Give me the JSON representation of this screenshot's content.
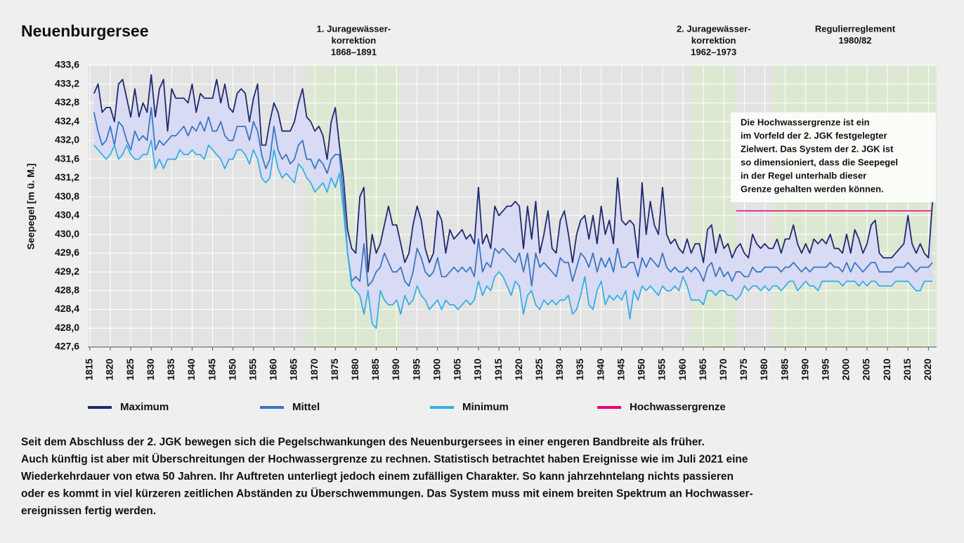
{
  "chart_data": {
    "type": "line",
    "title": "Neuenburgersee",
    "y_label": "Seepegel [m ü. M.]",
    "periods": [
      {
        "label": [
          "1. Juragewässer-",
          "korrektion",
          "1868–1891"
        ],
        "start": 1868,
        "end": 1891
      },
      {
        "label": [
          "2. Juragewässer-",
          "korrektion",
          "1962–1973"
        ],
        "start": 1962,
        "end": 1973
      },
      {
        "label": [
          "Regulierreglement",
          "1980/82"
        ],
        "start": 1982,
        "end": 2022
      }
    ],
    "note": [
      "Die Hochwassergrenze ist ein",
      "im Vorfeld der 2. JGK festgelegter",
      "Zielwert. Das System der 2. JGK ist",
      "so dimensioniert, dass die Seepegel",
      "in der Regel unterhalb dieser",
      "Grenze gehalten werden können."
    ],
    "caption": [
      "Seit dem Abschluss der 2. JGK bewegen sich die Pegelschwankungen des Neuenburgersees in einer engeren Bandbreite als früher.",
      "Auch künftig ist aber mit Überschreitungen der Hochwassergrenze zu rechnen. Statistisch betrachtet haben Ereignisse wie im Juli 2021 eine",
      "Wiederkehrdauer von etwa 50 Jahren. Ihr Auftreten unterliegt jedoch einem zufälligen Charakter. So kann jahrzehntelang nichts passieren",
      "oder es kommt in viel kürzeren zeitlichen Abständen zu Überschwemmungen. Das System muss mit einem breiten Spektrum an Hochwasser-",
      "ereignissen fertig werden."
    ],
    "xlim": [
      1814.5,
      2022
    ],
    "ylim": [
      427.6,
      433.6
    ],
    "grid": true,
    "band_color": "#d8dbf3",
    "period_color": "#dde8d2",
    "xticks": [
      1815,
      1820,
      1825,
      1830,
      1835,
      1840,
      1845,
      1850,
      1855,
      1860,
      1865,
      1870,
      1875,
      1880,
      1885,
      1890,
      1895,
      1900,
      1905,
      1910,
      1915,
      1920,
      1925,
      1930,
      1935,
      1940,
      1945,
      1950,
      1955,
      1960,
      1965,
      1970,
      1975,
      1980,
      1985,
      1990,
      1995,
      2000,
      2005,
      2010,
      2015,
      2020
    ],
    "yticks": [
      {
        "value": 427.6,
        "label": "427,6"
      },
      {
        "value": 428,
        "label": "428,0"
      },
      {
        "value": 428.4,
        "label": "428,4"
      },
      {
        "value": 428.8,
        "label": "428,8"
      },
      {
        "value": 429.2,
        "label": "429,2"
      },
      {
        "value": 429.6,
        "label": "429,6"
      },
      {
        "value": 430,
        "label": "430,0"
      },
      {
        "value": 430.4,
        "label": "430,4"
      },
      {
        "value": 430.8,
        "label": "430,8"
      },
      {
        "value": 431.2,
        "label": "431,2"
      },
      {
        "value": 431.6,
        "label": "431,6"
      },
      {
        "value": 432,
        "label": "432,0"
      },
      {
        "value": 432.4,
        "label": "432,4"
      },
      {
        "value": 432.8,
        "label": "432,8"
      },
      {
        "value": 433.2,
        "label": "433,2"
      },
      {
        "value": 433.6,
        "label": "433,6"
      }
    ],
    "x": [
      1816,
      1817,
      1818,
      1819,
      1820,
      1821,
      1822,
      1823,
      1824,
      1825,
      1826,
      1827,
      1828,
      1829,
      1830,
      1831,
      1832,
      1833,
      1834,
      1835,
      1836,
      1837,
      1838,
      1839,
      1840,
      1841,
      1842,
      1843,
      1844,
      1845,
      1846,
      1847,
      1848,
      1849,
      1850,
      1851,
      1852,
      1853,
      1854,
      1855,
      1856,
      1857,
      1858,
      1859,
      1860,
      1861,
      1862,
      1863,
      1864,
      1865,
      1866,
      1867,
      1868,
      1869,
      1870,
      1871,
      1872,
      1873,
      1874,
      1875,
      1876,
      1877,
      1878,
      1879,
      1880,
      1881,
      1882,
      1883,
      1884,
      1885,
      1886,
      1887,
      1888,
      1889,
      1890,
      1891,
      1892,
      1893,
      1894,
      1895,
      1896,
      1897,
      1898,
      1899,
      1900,
      1901,
      1902,
      1903,
      1904,
      1905,
      1906,
      1907,
      1908,
      1909,
      1910,
      1911,
      1912,
      1913,
      1914,
      1915,
      1916,
      1917,
      1918,
      1919,
      1920,
      1921,
      1922,
      1923,
      1924,
      1925,
      1926,
      1927,
      1928,
      1929,
      1930,
      1931,
      1932,
      1933,
      1934,
      1935,
      1936,
      1937,
      1938,
      1939,
      1940,
      1941,
      1942,
      1943,
      1944,
      1945,
      1946,
      1947,
      1948,
      1949,
      1950,
      1951,
      1952,
      1953,
      1954,
      1955,
      1956,
      1957,
      1958,
      1959,
      1960,
      1961,
      1962,
      1963,
      1964,
      1965,
      1966,
      1967,
      1968,
      1969,
      1970,
      1971,
      1972,
      1973,
      1974,
      1975,
      1976,
      1977,
      1978,
      1979,
      1980,
      1981,
      1982,
      1983,
      1984,
      1985,
      1986,
      1987,
      1988,
      1989,
      1990,
      1991,
      1992,
      1993,
      1994,
      1995,
      1996,
      1997,
      1998,
      1999,
      2000,
      2001,
      2002,
      2003,
      2004,
      2005,
      2006,
      2007,
      2008,
      2009,
      2010,
      2011,
      2012,
      2013,
      2014,
      2015,
      2016,
      2017,
      2018,
      2019,
      2020,
      2021
    ],
    "series": [
      {
        "name": "Maximum",
        "color": "#1f2a6e",
        "values": [
          433.0,
          433.2,
          432.6,
          432.7,
          432.7,
          432.4,
          433.2,
          433.3,
          432.9,
          432.5,
          433.1,
          432.5,
          432.8,
          432.6,
          433.4,
          432.5,
          433.1,
          433.3,
          432.2,
          433.1,
          432.9,
          432.9,
          432.9,
          432.8,
          433.2,
          432.6,
          433.0,
          432.9,
          432.9,
          432.9,
          433.3,
          432.8,
          433.2,
          432.7,
          432.6,
          433.0,
          433.1,
          433.0,
          432.4,
          432.9,
          433.2,
          431.9,
          431.9,
          432.4,
          432.8,
          432.6,
          432.2,
          432.2,
          432.2,
          432.4,
          432.8,
          433.1,
          432.5,
          432.4,
          432.2,
          432.3,
          432.1,
          431.6,
          432.4,
          432.7,
          431.9,
          431.2,
          430.1,
          429.7,
          429.6,
          430.8,
          431.0,
          429.2,
          430.0,
          429.6,
          429.8,
          430.2,
          430.6,
          430.2,
          430.2,
          429.8,
          429.4,
          429.6,
          430.2,
          430.6,
          430.3,
          429.7,
          429.4,
          429.6,
          430.5,
          430.3,
          429.6,
          430.1,
          429.9,
          430.0,
          430.1,
          429.9,
          430.0,
          429.8,
          431.0,
          429.8,
          430.0,
          429.7,
          430.6,
          430.4,
          430.5,
          430.6,
          430.6,
          430.7,
          430.6,
          429.7,
          430.6,
          429.9,
          430.7,
          429.6,
          430.0,
          430.5,
          429.7,
          429.6,
          430.3,
          430.5,
          430.0,
          429.4,
          430.0,
          430.3,
          430.4,
          429.9,
          430.4,
          429.8,
          430.6,
          430.0,
          430.3,
          429.8,
          431.2,
          430.3,
          430.2,
          430.3,
          430.2,
          429.5,
          431.1,
          430.0,
          430.7,
          430.2,
          430.0,
          431.0,
          430.0,
          429.8,
          429.9,
          429.7,
          429.6,
          429.9,
          429.6,
          429.8,
          429.8,
          429.4,
          430.1,
          430.2,
          429.6,
          430.0,
          429.7,
          429.8,
          429.5,
          429.7,
          429.8,
          429.6,
          429.5,
          430.0,
          429.8,
          429.7,
          429.8,
          429.7,
          429.7,
          429.9,
          429.6,
          429.9,
          429.9,
          430.2,
          429.8,
          429.6,
          429.8,
          429.6,
          429.9,
          429.8,
          429.9,
          429.8,
          430.0,
          429.7,
          429.7,
          429.6,
          430.0,
          429.6,
          430.1,
          429.9,
          429.6,
          429.8,
          430.2,
          430.3,
          429.6,
          429.5,
          429.5,
          429.5,
          429.6,
          429.7,
          429.8,
          430.4,
          429.8,
          429.6,
          429.8,
          429.6,
          429.5,
          430.7
        ]
      },
      {
        "name": "Mittel",
        "color": "#3a76c4",
        "values": [
          432.6,
          432.2,
          431.9,
          432.0,
          432.3,
          431.9,
          432.4,
          432.3,
          432.0,
          431.8,
          432.2,
          432.0,
          432.1,
          432.0,
          432.7,
          431.8,
          432.0,
          431.9,
          432.0,
          432.1,
          432.1,
          432.2,
          432.3,
          432.1,
          432.3,
          432.2,
          432.4,
          432.2,
          432.5,
          432.2,
          432.2,
          432.4,
          432.1,
          432.0,
          432.0,
          432.3,
          432.3,
          432.3,
          432.0,
          432.4,
          432.2,
          431.7,
          431.4,
          431.6,
          432.3,
          431.8,
          431.6,
          431.7,
          431.5,
          431.6,
          431.9,
          432.0,
          431.6,
          431.6,
          431.4,
          431.6,
          431.5,
          431.3,
          431.6,
          431.7,
          431.7,
          430.8,
          429.6,
          429.0,
          429.1,
          429.0,
          429.8,
          428.9,
          429.0,
          429.2,
          429.3,
          429.6,
          429.4,
          429.2,
          429.2,
          429.3,
          429.0,
          428.9,
          429.2,
          429.7,
          429.5,
          429.2,
          429.1,
          429.2,
          429.5,
          429.1,
          429.1,
          429.2,
          429.3,
          429.2,
          429.3,
          429.2,
          429.3,
          429.1,
          429.9,
          429.2,
          429.4,
          429.3,
          429.7,
          429.6,
          429.7,
          429.6,
          429.5,
          429.4,
          429.6,
          429.2,
          429.6,
          428.9,
          429.6,
          429.3,
          429.4,
          429.3,
          429.2,
          429.1,
          429.5,
          429.4,
          429.4,
          429.0,
          429.3,
          429.6,
          429.5,
          429.3,
          429.6,
          429.2,
          429.5,
          429.3,
          429.5,
          429.2,
          429.7,
          429.3,
          429.3,
          429.4,
          429.4,
          429.1,
          429.5,
          429.3,
          429.5,
          429.4,
          429.3,
          429.6,
          429.3,
          429.2,
          429.3,
          429.2,
          429.2,
          429.3,
          429.2,
          429.3,
          429.2,
          429.0,
          429.3,
          429.4,
          429.1,
          429.3,
          429.1,
          429.2,
          429.0,
          429.2,
          429.2,
          429.1,
          429.1,
          429.3,
          429.2,
          429.2,
          429.3,
          429.3,
          429.3,
          429.3,
          429.2,
          429.3,
          429.3,
          429.4,
          429.3,
          429.2,
          429.3,
          429.2,
          429.3,
          429.3,
          429.3,
          429.3,
          429.4,
          429.3,
          429.3,
          429.2,
          429.4,
          429.2,
          429.4,
          429.3,
          429.2,
          429.3,
          429.4,
          429.4,
          429.2,
          429.2,
          429.2,
          429.2,
          429.3,
          429.3,
          429.3,
          429.4,
          429.3,
          429.2,
          429.3,
          429.3,
          429.3,
          429.4
        ]
      },
      {
        "name": "Minimum",
        "color": "#36b0e6",
        "values": [
          431.9,
          431.8,
          431.7,
          431.6,
          431.7,
          431.9,
          431.6,
          431.7,
          431.9,
          431.7,
          431.6,
          431.6,
          431.7,
          431.7,
          432.0,
          431.4,
          431.6,
          431.4,
          431.6,
          431.6,
          431.6,
          431.8,
          431.7,
          431.7,
          431.8,
          431.7,
          431.7,
          431.6,
          431.9,
          431.8,
          431.7,
          431.6,
          431.4,
          431.6,
          431.6,
          431.8,
          431.8,
          431.7,
          431.5,
          431.8,
          431.6,
          431.2,
          431.1,
          431.2,
          431.8,
          431.4,
          431.2,
          431.3,
          431.2,
          431.1,
          431.5,
          431.4,
          431.2,
          431.1,
          430.9,
          431.0,
          431.1,
          430.9,
          431.2,
          431.0,
          431.3,
          430.5,
          429.6,
          428.9,
          428.8,
          428.7,
          428.3,
          428.8,
          428.1,
          428.0,
          428.8,
          428.6,
          428.5,
          428.5,
          428.6,
          428.3,
          428.7,
          428.5,
          428.6,
          428.9,
          428.7,
          428.6,
          428.4,
          428.5,
          428.6,
          428.4,
          428.6,
          428.5,
          428.5,
          428.4,
          428.5,
          428.6,
          428.5,
          428.6,
          429.0,
          428.7,
          428.9,
          428.8,
          429.1,
          429.2,
          429.1,
          428.9,
          428.7,
          429.0,
          428.9,
          428.3,
          428.7,
          428.8,
          428.5,
          428.4,
          428.6,
          428.5,
          428.6,
          428.5,
          428.6,
          428.6,
          428.7,
          428.3,
          428.4,
          428.7,
          429.1,
          428.5,
          428.4,
          428.8,
          429.0,
          428.5,
          428.7,
          428.6,
          428.7,
          428.6,
          428.8,
          428.2,
          428.8,
          428.6,
          428.9,
          428.8,
          428.9,
          428.8,
          428.7,
          428.9,
          428.8,
          428.8,
          428.9,
          428.8,
          429.1,
          428.9,
          428.6,
          428.6,
          428.6,
          428.5,
          428.8,
          428.8,
          428.7,
          428.8,
          428.8,
          428.7,
          428.7,
          428.6,
          428.7,
          428.9,
          428.8,
          428.9,
          428.9,
          428.8,
          428.9,
          428.8,
          428.9,
          428.9,
          428.8,
          428.9,
          429.0,
          429.0,
          428.8,
          428.9,
          429.0,
          428.9,
          428.9,
          428.8,
          429.0,
          429.0,
          429.0,
          429.0,
          429.0,
          428.9,
          429.0,
          429.0,
          429.0,
          428.9,
          429.0,
          428.9,
          429.0,
          429.0,
          428.9,
          428.9,
          428.9,
          428.9,
          429.0,
          429.0,
          429.0,
          429.0,
          428.9,
          428.8,
          428.8,
          429.0,
          429.0,
          429.0
        ]
      },
      {
        "name": "Hochwassergrenze",
        "color": "#e2007a",
        "x": [
          1973,
          2021
        ],
        "values": [
          430.5,
          430.5
        ]
      }
    ]
  }
}
